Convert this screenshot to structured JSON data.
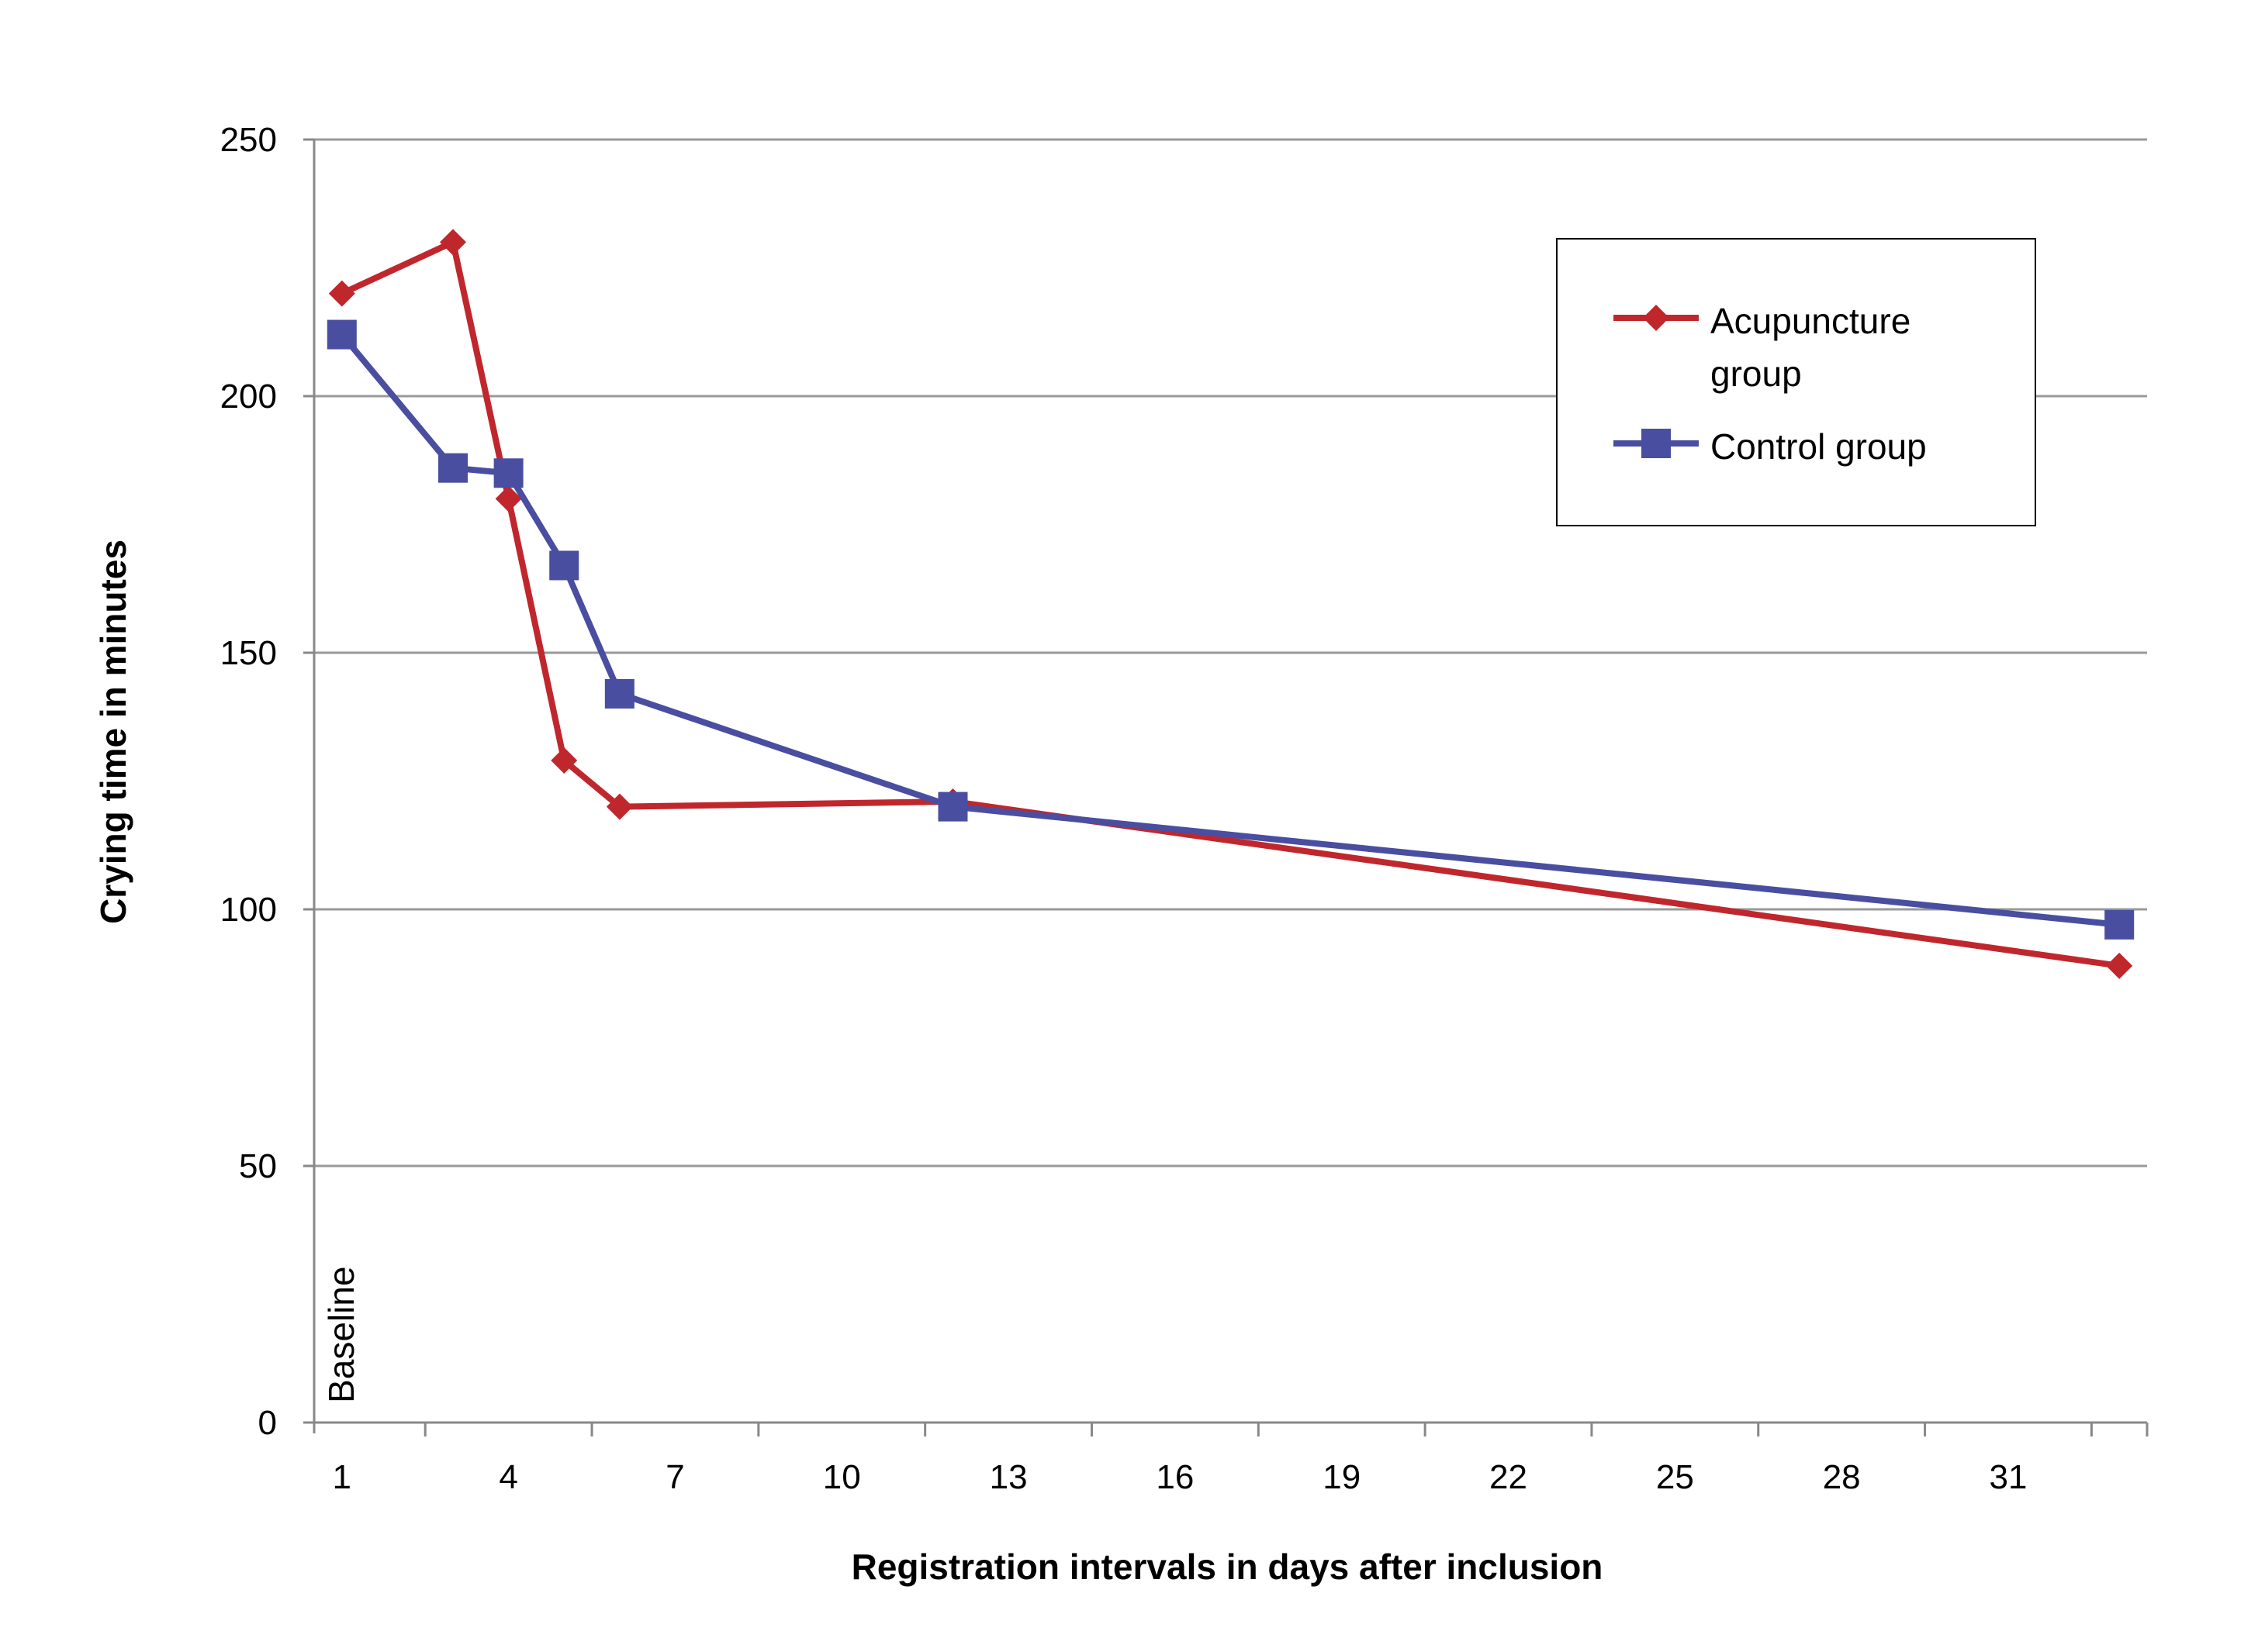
{
  "chart_data": {
    "type": "line",
    "xlabel": "Registration intervals in days after inclusion",
    "ylabel": "Crying time in minutes",
    "x_ticks": [
      "1",
      "4",
      "7",
      "10",
      "13",
      "16",
      "19",
      "22",
      "25",
      "28",
      "31"
    ],
    "y_ticks": [
      "0",
      "50",
      "100",
      "150",
      "200",
      "250"
    ],
    "xlim": [
      0.5,
      33.5
    ],
    "ylim": [
      0,
      250
    ],
    "grid": true,
    "legend_position": "top-right",
    "annotations": [
      {
        "text": "Baseline",
        "x": 1,
        "y": 5
      }
    ],
    "series": [
      {
        "name": "Acupuncture\ngroup",
        "name_lines": [
          "Acupuncture",
          "group"
        ],
        "color": "#c0272d",
        "marker": "diamond",
        "points": [
          [
            1,
            220
          ],
          [
            3,
            230
          ],
          [
            4,
            180
          ],
          [
            5,
            129
          ],
          [
            6,
            120
          ],
          [
            12,
            121
          ],
          [
            33,
            89
          ]
        ]
      },
      {
        "name": "Control group",
        "name_lines": [
          "Control group"
        ],
        "color": "#4a4ea0",
        "marker": "square",
        "points": [
          [
            1,
            212
          ],
          [
            3,
            186
          ],
          [
            4,
            185
          ],
          [
            5,
            167
          ],
          [
            6,
            142
          ],
          [
            12,
            120
          ],
          [
            33,
            97
          ]
        ]
      }
    ]
  },
  "colors": {
    "grid": "#999999",
    "axis": "#888888",
    "acupuncture": "#c0272d",
    "control": "#4a4ea0"
  }
}
